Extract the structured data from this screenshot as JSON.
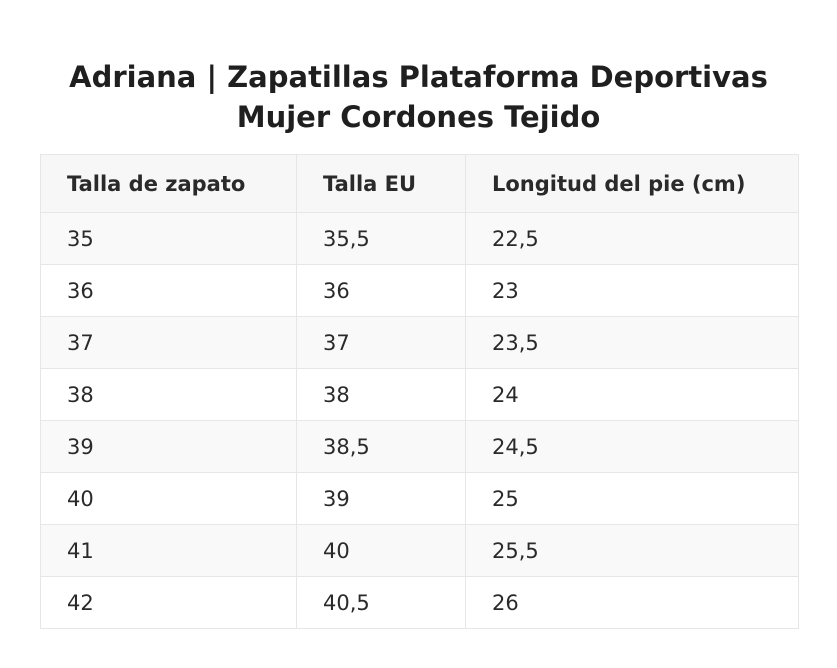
{
  "title": {
    "line1": "Adriana | Zapatillas Plataforma Deportivas",
    "line2": "Mujer Cordones Tejido"
  },
  "table": {
    "headers": [
      "Talla de zapato",
      "Talla EU",
      "Longitud del pie (cm)"
    ],
    "rows": [
      [
        "35",
        "35,5",
        "22,5"
      ],
      [
        "36",
        "36",
        "23"
      ],
      [
        "37",
        "37",
        "23,5"
      ],
      [
        "38",
        "38",
        "24"
      ],
      [
        "39",
        "38,5",
        "24,5"
      ],
      [
        "40",
        "39",
        "25"
      ],
      [
        "41",
        "40",
        "25,5"
      ],
      [
        "42",
        "40,5",
        "26"
      ]
    ]
  }
}
